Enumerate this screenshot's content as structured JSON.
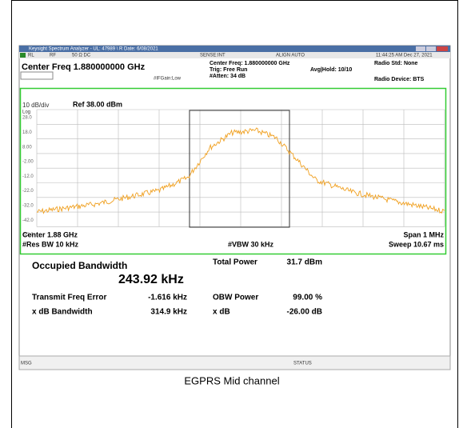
{
  "window": {
    "title": "Keysight Spectrum Analyzer - UL: 47989 \\ R Date: 6/08/2021"
  },
  "toolbar": [
    "RL",
    "RF",
    "50 Ω  DC",
    "SENSE:INT",
    "ALIGN AUTO",
    "11:44:25 AM Dec 27, 2021"
  ],
  "header": {
    "center_freq": "Center Freq 1.880000000 GHz",
    "if_gain": "#IFGain:Low",
    "settings": [
      "Center Freq: 1.880000000 GHz",
      "Trig: Free Run",
      "#Atten: 34 dB"
    ],
    "avg_hold": "Avg|Hold: 10/10",
    "radio_std": "Radio Std: None",
    "radio_device": "Radio Device: BTS"
  },
  "graph": {
    "scale": "10 dB/div",
    "ref": "Ref 38.00 dBm",
    "log": "Log",
    "y_labels": [
      "28.0",
      "18.0",
      "8.00",
      "-2.00",
      "-12.0",
      "-22.0",
      "-32.0",
      "-42.0",
      "-52.0"
    ],
    "center": "Center  1.88 GHz",
    "res_bw": "#Res BW  10 kHz",
    "vbw": "#VBW  30 kHz",
    "span": "Span 1 MHz",
    "sweep": "Sweep  10.67 ms"
  },
  "measurements": {
    "obw_label": "Occupied Bandwidth",
    "obw_value": "243.92 kHz",
    "rows": [
      [
        "",
        "",
        "Total Power",
        "31.7 dBm"
      ],
      [
        "Transmit Freq Error",
        "-1.616 kHz",
        "OBW Power",
        "99.00 %"
      ],
      [
        "x dB Bandwidth",
        "314.9 kHz",
        "x dB",
        "-26.00 dB"
      ]
    ]
  },
  "status": {
    "msg": "MSG",
    "status": "STATUS"
  },
  "caption": "EGPRS Mid channel"
}
